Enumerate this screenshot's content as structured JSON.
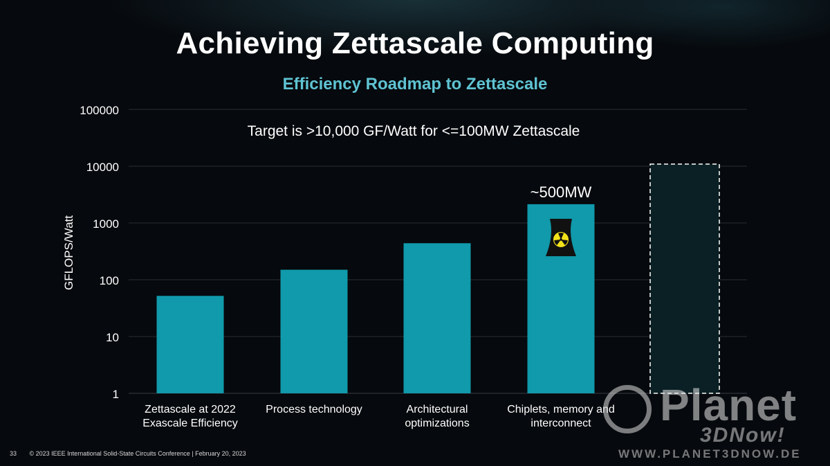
{
  "slide": {
    "title": "Achieving Zettascale Computing",
    "page_number": "33",
    "footer": "© 2023 IEEE International Solid-State Circuits Conference  |  February 20, 2023"
  },
  "watermark": {
    "brand": "Planet",
    "sub": "3DNow!",
    "url": "WWW.PLANET3DNOW.DE"
  },
  "colors": {
    "bar": "#109aab",
    "subtitle": "#5fc3d2",
    "target_fill": "#0a2025",
    "grid": "#2a2f34"
  },
  "chart_data": {
    "type": "bar",
    "title": "Efficiency Roadmap to Zettascale",
    "ylabel": "GFLOPS/Watt",
    "yscale": "log",
    "ylim": [
      1,
      100000
    ],
    "yticks": [
      1,
      10,
      100,
      1000,
      10000,
      100000
    ],
    "ytick_labels": [
      "1",
      "10",
      "100",
      "1000",
      "10000",
      "100000"
    ],
    "grid": "horizontal",
    "categories": [
      "Zettascale at 2022\nExascale Efficiency",
      "Process technology",
      "Architectural\noptimizations",
      "Chiplets, memory and\ninterconnect",
      ""
    ],
    "values": [
      52,
      150,
      440,
      2140,
      10000
    ],
    "bar_styles": [
      "solid",
      "solid",
      "solid",
      "solid",
      "dashed-outline"
    ],
    "annotations": [
      {
        "text": "Target is >10,000 GF/Watt for <=100MW Zettascale",
        "category_index": null
      },
      {
        "text": "~500MW",
        "category_index": 3
      }
    ],
    "icons": [
      {
        "name": "nuclear-plant-icon",
        "category_index": 3
      }
    ]
  }
}
